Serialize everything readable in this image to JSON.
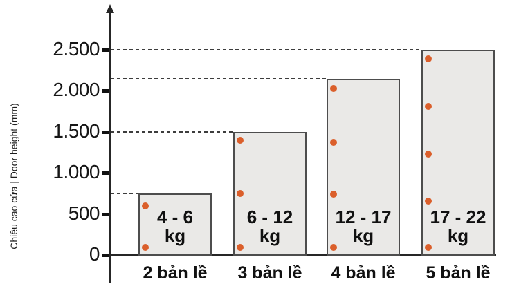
{
  "chart_data": {
    "type": "bar",
    "title": "",
    "ylabel": "Chiều cao cửa | Door height (mm)",
    "xlabel": "",
    "ylim": [
      0,
      3000
    ],
    "grid": "dashed guide lines from y-axis to each bar top",
    "legend": "none",
    "y_ticks": [
      {
        "label": "0",
        "value": 0
      },
      {
        "label": "500",
        "value": 500
      },
      {
        "label": "1.000",
        "value": 1000
      },
      {
        "label": "1.500",
        "value": 1500
      },
      {
        "label": "2.000",
        "value": 2000
      },
      {
        "label": "2.500",
        "value": 2500
      }
    ],
    "categories": [
      "2 bản lề",
      "3 bản lề",
      "4 bản lề",
      "5 bản lề"
    ],
    "bars": [
      {
        "category": "2 bản lề",
        "weight_range": "4 - 6",
        "unit": "kg",
        "door_height_mm": 750,
        "hinge_positions_mm": [
          90,
          600
        ]
      },
      {
        "category": "3 bản lề",
        "weight_range": "6 - 12",
        "unit": "kg",
        "door_height_mm": 1500,
        "hinge_positions_mm": [
          90,
          750,
          1400
        ]
      },
      {
        "category": "4 bản lề",
        "weight_range": "12 - 17",
        "unit": "kg",
        "door_height_mm": 2150,
        "hinge_positions_mm": [
          90,
          740,
          1370,
          2030
        ]
      },
      {
        "category": "5 bản lề",
        "weight_range": "17 - 22",
        "unit": "kg",
        "door_height_mm": 2500,
        "hinge_positions_mm": [
          90,
          660,
          1230,
          1810,
          2390
        ]
      }
    ],
    "colors": {
      "bar_fill": "#eae9e7",
      "bar_border": "#4d4d4d",
      "hinge_dot": "#db5f2b",
      "axis": "#262626",
      "text": "#111111"
    }
  }
}
